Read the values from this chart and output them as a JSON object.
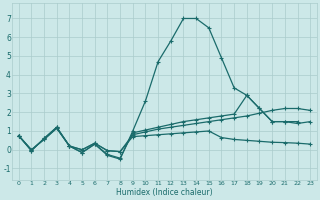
{
  "xlabel": "Humidex (Indice chaleur)",
  "bg_color": "#cce8e8",
  "grid_color": "#aacccc",
  "line_color": "#1a6b6b",
  "xlim": [
    -0.5,
    23.5
  ],
  "ylim": [
    -1.6,
    7.8
  ],
  "xticks": [
    0,
    1,
    2,
    3,
    4,
    5,
    6,
    7,
    8,
    9,
    10,
    11,
    12,
    13,
    14,
    15,
    16,
    17,
    18,
    19,
    20,
    21,
    22,
    23
  ],
  "yticks": [
    -1,
    0,
    1,
    2,
    3,
    4,
    5,
    6,
    7
  ],
  "s1_x": [
    0,
    1,
    2,
    3,
    4,
    5,
    6,
    7,
    8,
    9,
    10,
    11,
    12,
    13,
    14,
    15,
    16,
    17,
    18,
    19,
    20,
    21,
    22
  ],
  "s1_y": [
    0.75,
    -0.05,
    0.6,
    1.2,
    0.2,
    -0.15,
    0.3,
    -0.3,
    -0.5,
    1.0,
    2.6,
    4.7,
    5.8,
    7.0,
    7.0,
    6.5,
    4.9,
    3.3,
    2.9,
    2.2,
    1.5,
    1.5,
    1.5
  ],
  "s2_x": [
    0,
    1,
    2,
    3,
    4,
    5,
    6,
    7,
    8,
    9,
    10,
    11,
    12,
    13,
    14,
    15,
    16,
    17,
    18,
    19,
    20,
    21,
    22,
    23
  ],
  "s2_y": [
    0.75,
    -0.05,
    0.6,
    1.2,
    0.2,
    -0.15,
    0.3,
    -0.25,
    -0.45,
    0.9,
    1.05,
    1.2,
    1.35,
    1.5,
    1.6,
    1.7,
    1.8,
    1.9,
    2.9,
    2.2,
    1.5,
    1.5,
    1.4,
    1.5
  ],
  "s3_x": [
    0,
    1,
    2,
    3,
    4,
    5,
    6,
    7,
    8,
    9,
    10,
    11,
    12,
    13,
    14,
    15,
    16,
    17,
    18,
    19,
    20,
    21,
    22,
    23
  ],
  "s3_y": [
    0.75,
    0.0,
    0.55,
    1.15,
    0.2,
    0.0,
    0.35,
    -0.05,
    -0.1,
    0.8,
    0.95,
    1.1,
    1.2,
    1.3,
    1.4,
    1.5,
    1.6,
    1.7,
    1.8,
    1.95,
    2.1,
    2.2,
    2.2,
    2.1
  ],
  "s4_x": [
    0,
    1,
    2,
    3,
    4,
    5,
    6,
    7,
    8,
    9,
    10,
    11,
    12,
    13,
    14,
    15,
    16,
    17,
    18,
    19,
    20,
    21,
    22,
    23
  ],
  "s4_y": [
    0.75,
    0.0,
    0.55,
    1.15,
    0.2,
    0.0,
    0.35,
    -0.05,
    -0.1,
    0.7,
    0.75,
    0.8,
    0.85,
    0.9,
    0.95,
    1.0,
    0.65,
    0.55,
    0.5,
    0.45,
    0.4,
    0.38,
    0.35,
    0.3
  ]
}
